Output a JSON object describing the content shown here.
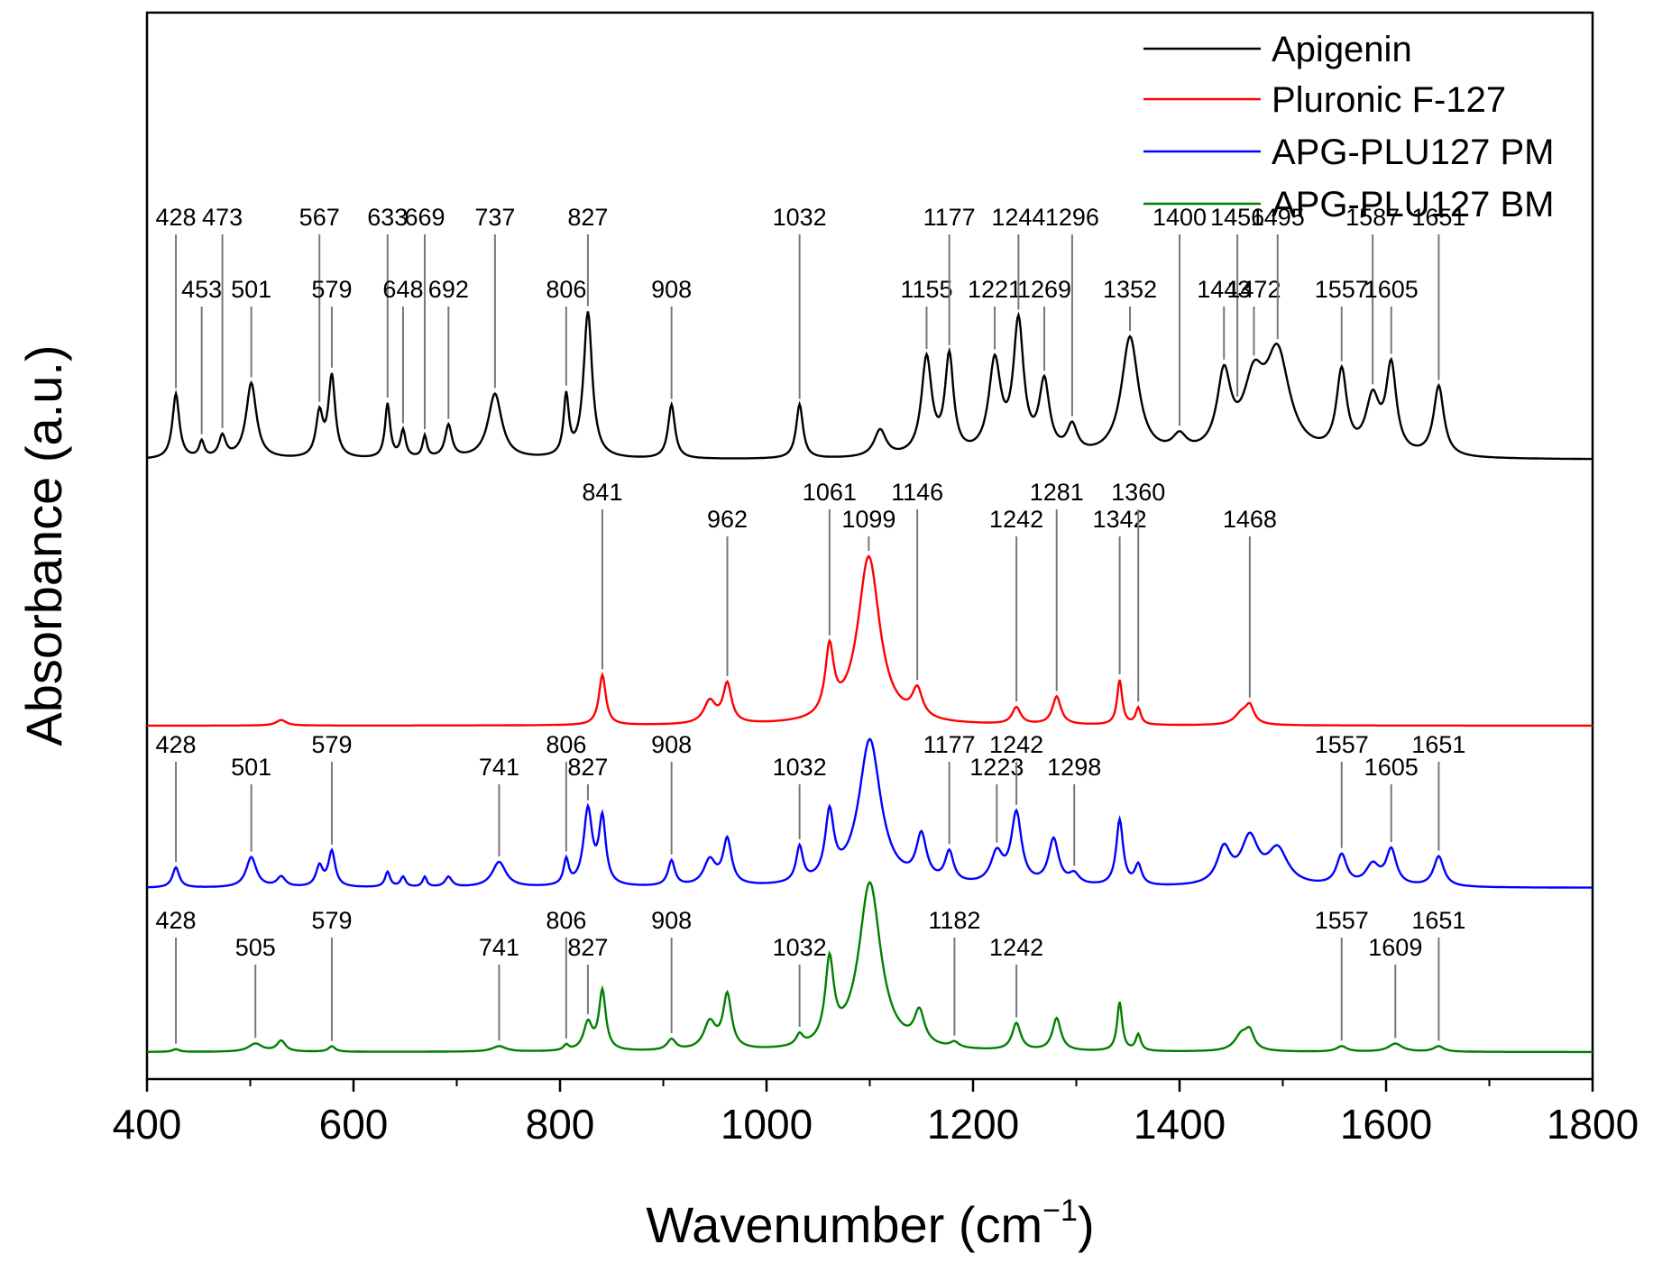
{
  "chart_data": {
    "type": "line",
    "title": "",
    "xlabel": "Wavenumber (cm",
    "xlabel_sup": "−1",
    "xlabel_close": ")",
    "ylabel": "Absorbance (a.u.)",
    "xlim": [
      400,
      1800
    ],
    "xticks": [
      400,
      600,
      800,
      1000,
      1200,
      1400,
      1600,
      1800
    ],
    "yticks": [],
    "grid": false,
    "legend_position": "top-right",
    "series": [
      {
        "name": "Apigenin",
        "color": "#000000",
        "baseline": 0.05,
        "peaks": [
          [
            428,
            0.12,
            4
          ],
          [
            453,
            0.03,
            3
          ],
          [
            473,
            0.04,
            4
          ],
          [
            501,
            0.14,
            6
          ],
          [
            567,
            0.08,
            4
          ],
          [
            579,
            0.15,
            4
          ],
          [
            633,
            0.1,
            3
          ],
          [
            648,
            0.05,
            3
          ],
          [
            669,
            0.04,
            2.5
          ],
          [
            692,
            0.06,
            4
          ],
          [
            737,
            0.12,
            8
          ],
          [
            806,
            0.11,
            3
          ],
          [
            827,
            0.27,
            5
          ],
          [
            908,
            0.1,
            4
          ],
          [
            1032,
            0.1,
            4
          ],
          [
            1110,
            0.05,
            7
          ],
          [
            1155,
            0.18,
            6
          ],
          [
            1177,
            0.18,
            5
          ],
          [
            1221,
            0.17,
            7
          ],
          [
            1244,
            0.24,
            6
          ],
          [
            1269,
            0.13,
            6
          ],
          [
            1296,
            0.05,
            6
          ],
          [
            1352,
            0.22,
            10
          ],
          [
            1400,
            0.03,
            8
          ],
          [
            1443,
            0.14,
            8
          ],
          [
            1472,
            0.12,
            12
          ],
          [
            1495,
            0.18,
            14
          ],
          [
            1557,
            0.15,
            6
          ],
          [
            1587,
            0.1,
            8
          ],
          [
            1605,
            0.16,
            6
          ],
          [
            1651,
            0.13,
            6
          ]
        ],
        "labels": [
          {
            "x": 428,
            "t": "428"
          },
          {
            "x": 453,
            "t": "453"
          },
          {
            "x": 473,
            "t": "473"
          },
          {
            "x": 501,
            "t": "501"
          },
          {
            "x": 567,
            "t": "567"
          },
          {
            "x": 579,
            "t": "579"
          },
          {
            "x": 633,
            "t": "633"
          },
          {
            "x": 648,
            "t": "648"
          },
          {
            "x": 669,
            "t": "669"
          },
          {
            "x": 692,
            "t": "692"
          },
          {
            "x": 737,
            "t": "737"
          },
          {
            "x": 806,
            "t": "806"
          },
          {
            "x": 827,
            "t": "827"
          },
          {
            "x": 908,
            "t": "908"
          },
          {
            "x": 1032,
            "t": "1032"
          },
          {
            "x": 1155,
            "t": "1155"
          },
          {
            "x": 1177,
            "t": "1177"
          },
          {
            "x": 1221,
            "t": "1221"
          },
          {
            "x": 1244,
            "t": "1244"
          },
          {
            "x": 1269,
            "t": "1269"
          },
          {
            "x": 1296,
            "t": "1296"
          },
          {
            "x": 1352,
            "t": "1352"
          },
          {
            "x": 1400,
            "t": "1400"
          },
          {
            "x": 1443,
            "t": "1443"
          },
          {
            "x": 1456,
            "t": "1456"
          },
          {
            "x": 1472,
            "t": "1472"
          },
          {
            "x": 1495,
            "t": "1495"
          },
          {
            "x": 1557,
            "t": "1557"
          },
          {
            "x": 1587,
            "t": "1587"
          },
          {
            "x": 1605,
            "t": "1605"
          },
          {
            "x": 1651,
            "t": "1651"
          }
        ]
      },
      {
        "name": "Pluronic F-127",
        "color": "#ff0000",
        "baseline": 0.0,
        "peaks": [
          [
            530,
            0.01,
            6
          ],
          [
            841,
            0.09,
            4
          ],
          [
            945,
            0.04,
            7
          ],
          [
            962,
            0.07,
            5
          ],
          [
            1061,
            0.12,
            5
          ],
          [
            1099,
            0.3,
            13
          ],
          [
            1146,
            0.05,
            6
          ],
          [
            1242,
            0.03,
            5
          ],
          [
            1281,
            0.05,
            5
          ],
          [
            1342,
            0.08,
            3
          ],
          [
            1360,
            0.03,
            3
          ],
          [
            1460,
            0.02,
            8
          ],
          [
            1468,
            0.03,
            5
          ]
        ],
        "labels": [
          {
            "x": 841,
            "t": "841"
          },
          {
            "x": 962,
            "t": "962"
          },
          {
            "x": 1061,
            "t": "1061"
          },
          {
            "x": 1099,
            "t": "1099"
          },
          {
            "x": 1146,
            "t": "1146"
          },
          {
            "x": 1242,
            "t": "1242"
          },
          {
            "x": 1281,
            "t": "1281"
          },
          {
            "x": 1342,
            "t": "1342"
          },
          {
            "x": 1360,
            "t": "1360"
          },
          {
            "x": 1468,
            "t": "1468"
          }
        ]
      },
      {
        "name": "APG-PLU127 PM",
        "color": "#0000ff",
        "baseline": 0.0,
        "peaks": [
          [
            428,
            0.04,
            4
          ],
          [
            501,
            0.06,
            6
          ],
          [
            530,
            0.02,
            5
          ],
          [
            567,
            0.04,
            4
          ],
          [
            579,
            0.07,
            4
          ],
          [
            633,
            0.03,
            3
          ],
          [
            648,
            0.02,
            3
          ],
          [
            669,
            0.02,
            2.5
          ],
          [
            692,
            0.02,
            4
          ],
          [
            741,
            0.05,
            8
          ],
          [
            806,
            0.05,
            3
          ],
          [
            827,
            0.15,
            5
          ],
          [
            841,
            0.13,
            4
          ],
          [
            908,
            0.05,
            4
          ],
          [
            945,
            0.05,
            7
          ],
          [
            962,
            0.09,
            5
          ],
          [
            1032,
            0.07,
            4
          ],
          [
            1061,
            0.13,
            5
          ],
          [
            1100,
            0.29,
            13
          ],
          [
            1150,
            0.09,
            6
          ],
          [
            1177,
            0.06,
            5
          ],
          [
            1223,
            0.06,
            7
          ],
          [
            1242,
            0.14,
            6
          ],
          [
            1278,
            0.09,
            6
          ],
          [
            1298,
            0.02,
            6
          ],
          [
            1342,
            0.13,
            4
          ],
          [
            1360,
            0.04,
            4
          ],
          [
            1443,
            0.07,
            8
          ],
          [
            1468,
            0.09,
            10
          ],
          [
            1495,
            0.07,
            12
          ],
          [
            1557,
            0.06,
            6
          ],
          [
            1587,
            0.04,
            8
          ],
          [
            1605,
            0.07,
            6
          ],
          [
            1651,
            0.06,
            6
          ]
        ],
        "labels": [
          {
            "x": 428,
            "t": "428"
          },
          {
            "x": 501,
            "t": "501"
          },
          {
            "x": 579,
            "t": "579"
          },
          {
            "x": 741,
            "t": "741"
          },
          {
            "x": 806,
            "t": "806"
          },
          {
            "x": 827,
            "t": "827"
          },
          {
            "x": 908,
            "t": "908"
          },
          {
            "x": 1032,
            "t": "1032"
          },
          {
            "x": 1177,
            "t": "1177"
          },
          {
            "x": 1223,
            "t": "1223"
          },
          {
            "x": 1242,
            "t": "1242"
          },
          {
            "x": 1298,
            "t": "1298"
          },
          {
            "x": 1557,
            "t": "1557"
          },
          {
            "x": 1605,
            "t": "1605"
          },
          {
            "x": 1651,
            "t": "1651"
          }
        ]
      },
      {
        "name": "APG-PLU127 BM",
        "color": "#008000",
        "baseline": 0.0,
        "peaks": [
          [
            428,
            0.005,
            4
          ],
          [
            505,
            0.015,
            8
          ],
          [
            530,
            0.02,
            5
          ],
          [
            579,
            0.01,
            4
          ],
          [
            741,
            0.01,
            8
          ],
          [
            806,
            0.01,
            3
          ],
          [
            827,
            0.05,
            5
          ],
          [
            841,
            0.11,
            4
          ],
          [
            908,
            0.02,
            5
          ],
          [
            945,
            0.05,
            7
          ],
          [
            962,
            0.1,
            5
          ],
          [
            1032,
            0.02,
            4
          ],
          [
            1061,
            0.15,
            5
          ],
          [
            1100,
            0.31,
            13
          ],
          [
            1148,
            0.06,
            6
          ],
          [
            1182,
            0.01,
            5
          ],
          [
            1242,
            0.05,
            5
          ],
          [
            1281,
            0.06,
            5
          ],
          [
            1342,
            0.09,
            3
          ],
          [
            1360,
            0.03,
            3
          ],
          [
            1460,
            0.03,
            8
          ],
          [
            1468,
            0.03,
            5
          ],
          [
            1557,
            0.01,
            6
          ],
          [
            1609,
            0.015,
            8
          ],
          [
            1651,
            0.01,
            6
          ]
        ],
        "labels": [
          {
            "x": 428,
            "t": "428"
          },
          {
            "x": 505,
            "t": "505"
          },
          {
            "x": 579,
            "t": "579"
          },
          {
            "x": 741,
            "t": "741"
          },
          {
            "x": 806,
            "t": "806"
          },
          {
            "x": 827,
            "t": "827"
          },
          {
            "x": 908,
            "t": "908"
          },
          {
            "x": 1032,
            "t": "1032"
          },
          {
            "x": 1182,
            "t": "1182"
          },
          {
            "x": 1242,
            "t": "1242"
          },
          {
            "x": 1557,
            "t": "1557"
          },
          {
            "x": 1609,
            "t": "1609"
          },
          {
            "x": 1651,
            "t": "1651"
          }
        ]
      }
    ]
  }
}
